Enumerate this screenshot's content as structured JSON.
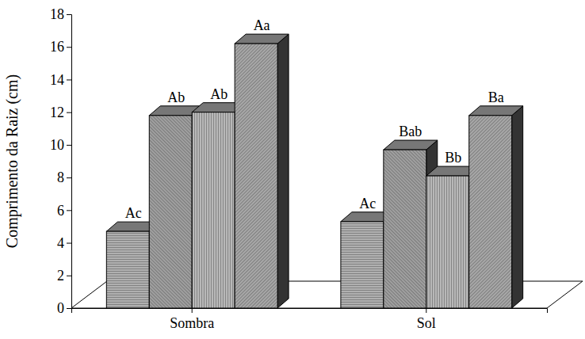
{
  "chart_data": {
    "type": "bar",
    "y_label": "Comprimento da Raiz (cm)",
    "categories": [
      "Sombra",
      "Sol"
    ],
    "series": [
      {
        "color": "#b0b0b0",
        "values": [
          4.7,
          5.3
        ],
        "annotations": [
          "Ac",
          "Ac"
        ]
      },
      {
        "color": "#a0a0a0",
        "values": [
          11.8,
          9.7
        ],
        "annotations": [
          "Ab",
          "Bab"
        ]
      },
      {
        "color": "#b8b8b8",
        "values": [
          12.0,
          8.1
        ],
        "annotations": [
          "Ab",
          "Bb"
        ]
      },
      {
        "color": "#a8a8a8",
        "values": [
          16.2,
          11.8
        ],
        "annotations": [
          "Aa",
          "Ba"
        ]
      }
    ],
    "ylim": [
      0,
      18
    ],
    "yticks": [
      0,
      2,
      4,
      6,
      8,
      10,
      12,
      14,
      16,
      18
    ],
    "grid": false
  }
}
